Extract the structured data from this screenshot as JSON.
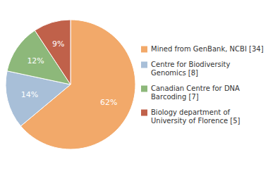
{
  "chart_data": {
    "type": "pie",
    "categories": [
      "Mined from GenBank, NCBI [34]",
      "Centre for Biodiversity\nGenomics [8]",
      "Canadian Centre for DNA\nBarcoding [7]",
      "Biology department of\nUniversity of Florence [5]"
    ],
    "values": [
      62,
      14,
      12,
      9
    ],
    "value_labels": [
      "62%",
      "14%",
      "12%",
      "9%"
    ],
    "colors": [
      "#F2A96A",
      "#A8BFD8",
      "#8DB87A",
      "#C0614A"
    ],
    "data_labels": true,
    "legend": "right"
  }
}
